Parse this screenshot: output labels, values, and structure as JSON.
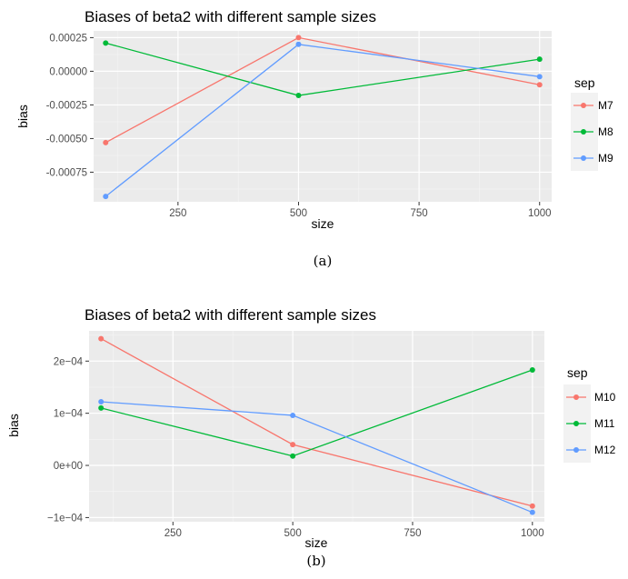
{
  "chart_data": [
    {
      "type": "line",
      "title": "Biases of beta2 with different sample sizes",
      "xlabel": "size",
      "ylabel": "bias",
      "caption": "(a)",
      "x": [
        100,
        500,
        1000
      ],
      "xlim": [
        75,
        1025
      ],
      "ylim": [
        -0.00097,
        0.0003
      ],
      "xticks": [
        250,
        500,
        750,
        1000
      ],
      "xtick_labels": [
        "250",
        "500",
        "750",
        "1000"
      ],
      "yticks": [
        0.00025,
        0.0,
        -0.00025,
        -0.0005,
        -0.00075
      ],
      "ytick_labels": [
        "0.00025",
        "0.00000",
        "-0.00025",
        "-0.00050",
        "-0.00075"
      ],
      "legend_title": "sep",
      "legend_position": "right",
      "grid": true,
      "series": [
        {
          "name": "M7",
          "color": "#F8766D",
          "values": [
            -0.00053,
            0.00025,
            -0.0001
          ]
        },
        {
          "name": "M8",
          "color": "#00BA38",
          "values": [
            0.00021,
            -0.00018,
            9e-05
          ]
        },
        {
          "name": "M9",
          "color": "#619CFF",
          "values": [
            -0.00093,
            0.0002,
            -4e-05
          ]
        }
      ]
    },
    {
      "type": "line",
      "title": "Biases of beta2 with different sample sizes",
      "xlabel": "size",
      "ylabel": "bias",
      "caption": "(b)",
      "x": [
        100,
        500,
        1000
      ],
      "xlim": [
        75,
        1025
      ],
      "ylim": [
        -0.000108,
        0.000258
      ],
      "xticks": [
        250,
        500,
        750,
        1000
      ],
      "xtick_labels": [
        "250",
        "500",
        "750",
        "1000"
      ],
      "yticks": [
        0.0002,
        0.0001,
        0.0,
        -0.0001
      ],
      "ytick_labels": [
        "2e−04",
        "1e−04",
        "0e+00",
        "−1e−04"
      ],
      "legend_title": "sep",
      "legend_position": "right",
      "grid": true,
      "series": [
        {
          "name": "M10",
          "color": "#F8766D",
          "values": [
            0.000243,
            4e-05,
            -7.8e-05
          ]
        },
        {
          "name": "M11",
          "color": "#00BA38",
          "values": [
            0.00011,
            1.8e-05,
            0.000183
          ]
        },
        {
          "name": "M12",
          "color": "#619CFF",
          "values": [
            0.000122,
            9.6e-05,
            -9e-05
          ]
        }
      ]
    }
  ]
}
